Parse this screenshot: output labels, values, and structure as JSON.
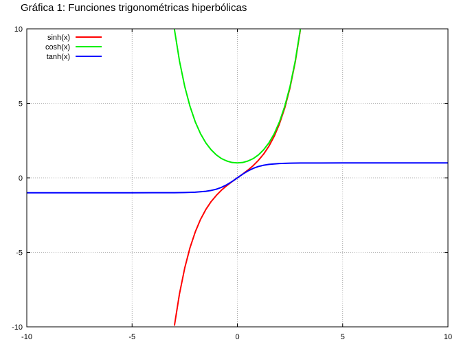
{
  "page": {
    "title": "Gráfica 1: Funciones trigonométricas hiperbólicas"
  },
  "chart_data": {
    "type": "line",
    "title": "Gráfica 1: Funciones trigonométricas hiperbólicas",
    "xlabel": "",
    "ylabel": "",
    "xlim": [
      -10,
      10
    ],
    "ylim": [
      -10,
      10
    ],
    "xticks": [
      -10,
      -5,
      0,
      5,
      10
    ],
    "yticks": [
      -10,
      -5,
      0,
      5,
      10
    ],
    "grid": true,
    "grid_style": "dotted",
    "legend_position": "top-left",
    "series": [
      {
        "name": "sinh(x)",
        "color": "#ff0000",
        "x": [
          -2.99,
          -2.75,
          -2.5,
          -2.25,
          -2.0,
          -1.75,
          -1.5,
          -1.25,
          -1.0,
          -0.75,
          -0.5,
          -0.25,
          0.0,
          0.25,
          0.5,
          0.75,
          1.0,
          1.25,
          1.5,
          1.75,
          2.0,
          2.25,
          2.5,
          2.75,
          2.99
        ],
        "values": [
          -9.92,
          -7.79,
          -6.05,
          -4.69,
          -3.63,
          -2.79,
          -2.13,
          -1.6,
          -1.18,
          -0.82,
          -0.52,
          -0.25,
          0.0,
          0.25,
          0.52,
          0.82,
          1.18,
          1.6,
          2.13,
          2.79,
          3.63,
          4.69,
          6.05,
          7.79,
          9.92
        ]
      },
      {
        "name": "cosh(x)",
        "color": "#00ee00",
        "x": [
          -2.99,
          -2.75,
          -2.5,
          -2.25,
          -2.0,
          -1.75,
          -1.5,
          -1.25,
          -1.0,
          -0.75,
          -0.5,
          -0.25,
          0.0,
          0.25,
          0.5,
          0.75,
          1.0,
          1.25,
          1.5,
          1.75,
          2.0,
          2.25,
          2.5,
          2.75,
          2.99
        ],
        "values": [
          9.97,
          7.85,
          6.13,
          4.8,
          3.76,
          2.96,
          2.35,
          1.89,
          1.54,
          1.29,
          1.13,
          1.03,
          1.0,
          1.03,
          1.13,
          1.29,
          1.54,
          1.89,
          2.35,
          2.96,
          3.76,
          4.8,
          6.13,
          7.85,
          9.97
        ]
      },
      {
        "name": "tanh(x)",
        "color": "#0000ff",
        "x": [
          -10,
          -8,
          -6,
          -5,
          -4,
          -3,
          -2.5,
          -2,
          -1.5,
          -1.25,
          -1,
          -0.75,
          -0.5,
          -0.25,
          0,
          0.25,
          0.5,
          0.75,
          1,
          1.25,
          1.5,
          2,
          2.5,
          3,
          4,
          5,
          6,
          8,
          10
        ],
        "values": [
          -1.0,
          -1.0,
          -1.0,
          -1.0,
          -0.999,
          -0.995,
          -0.987,
          -0.964,
          -0.905,
          -0.848,
          -0.762,
          -0.635,
          -0.462,
          -0.245,
          0.0,
          0.245,
          0.462,
          0.635,
          0.762,
          0.848,
          0.905,
          0.964,
          0.987,
          0.995,
          0.999,
          1.0,
          1.0,
          1.0,
          1.0
        ]
      }
    ]
  }
}
